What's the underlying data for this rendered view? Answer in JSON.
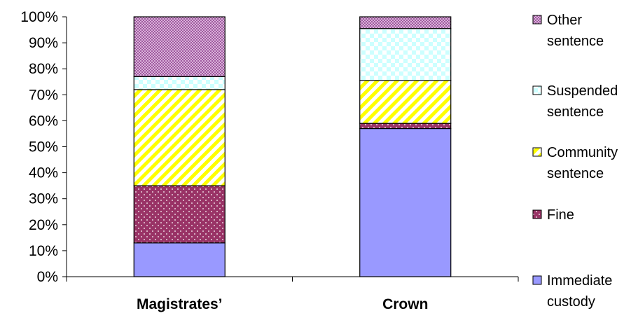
{
  "chart_data": {
    "type": "bar",
    "stacked": true,
    "percent_axis": true,
    "categories": [
      "Magistrates’",
      "Crown"
    ],
    "series": [
      {
        "name": "Immediate custody",
        "values": [
          13,
          57
        ],
        "color": "#9999ff",
        "pattern": "solid"
      },
      {
        "name": "Fine",
        "values": [
          22,
          2
        ],
        "color": "#993366",
        "pattern": "dots"
      },
      {
        "name": "Community sentence",
        "values": [
          37,
          16.5
        ],
        "color": "#ffff00",
        "pattern": "diagonal-stripes"
      },
      {
        "name": "Suspended sentence",
        "values": [
          5,
          20
        ],
        "color": "#ccffff",
        "pattern": "checker"
      },
      {
        "name": "Other sentence",
        "values": [
          23,
          4.5
        ],
        "color": "#cc99cc",
        "pattern": "fine-check"
      }
    ],
    "ylim": [
      0,
      100
    ],
    "yticks": [
      "0%",
      "10%",
      "20%",
      "30%",
      "40%",
      "50%",
      "60%",
      "70%",
      "80%",
      "90%",
      "100%"
    ],
    "grid": false,
    "legend_position": "right",
    "legend": [
      {
        "series_index": 4,
        "lines": [
          "Other",
          "sentence"
        ]
      },
      {
        "series_index": 3,
        "lines": [
          "Suspended",
          "sentence"
        ]
      },
      {
        "series_index": 2,
        "lines": [
          "Community",
          "sentence"
        ]
      },
      {
        "series_index": 1,
        "lines": [
          "Fine"
        ]
      },
      {
        "series_index": 0,
        "lines": [
          "Immediate",
          "custody"
        ]
      }
    ]
  }
}
